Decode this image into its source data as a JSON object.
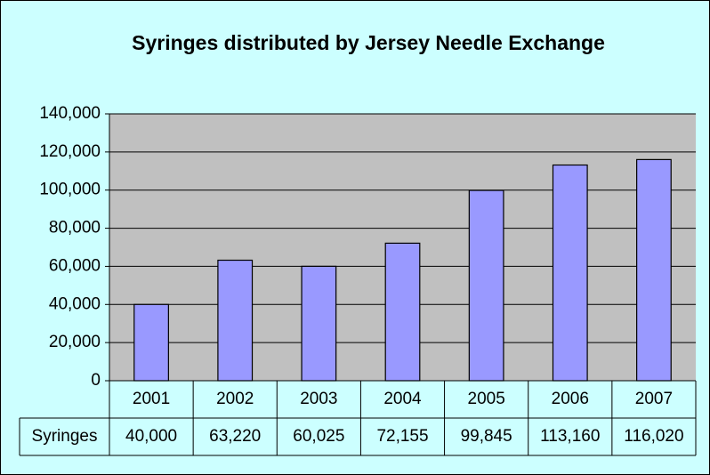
{
  "chart_data": {
    "type": "bar",
    "title": "Syringes distributed by Jersey Needle Exchange",
    "categories": [
      "2001",
      "2002",
      "2003",
      "2004",
      "2005",
      "2006",
      "2007"
    ],
    "series": [
      {
        "name": "Syringes",
        "color": "#9999ff",
        "values": [
          40000,
          63220,
          60025,
          72155,
          99845,
          113160,
          116020
        ],
        "value_labels": [
          "40,000",
          "63,220",
          "60,025",
          "72,155",
          "99,845",
          "113,160",
          "116,020"
        ]
      }
    ],
    "ylim": [
      0,
      140000
    ],
    "yticks": [
      0,
      {
        "value": 20000,
        "label": "20,000"
      },
      {
        "value": 40000,
        "label": "40,000"
      },
      {
        "value": 60000,
        "label": "60,000"
      },
      {
        "value": 80000,
        "label": "80,000"
      },
      {
        "value": 100000,
        "label": "100,000"
      },
      {
        "value": 120000,
        "label": "120,000"
      },
      {
        "value": 140000,
        "label": "140,000"
      }
    ],
    "grid": true
  }
}
